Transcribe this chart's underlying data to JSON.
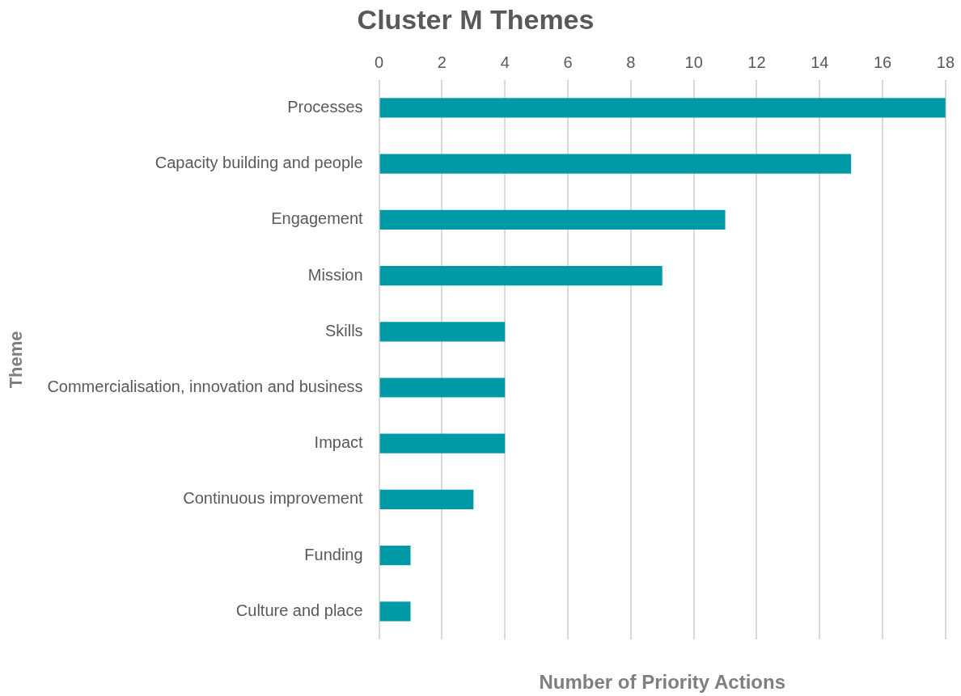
{
  "chart_data": {
    "type": "bar",
    "orientation": "horizontal",
    "title": "Cluster M Themes",
    "xlabel": "Number of Priority Actions",
    "ylabel": "Theme",
    "categories": [
      "Processes",
      "Capacity building and people",
      "Engagement",
      "Mission",
      "Skills",
      "Commercialisation, innovation and business",
      "Impact",
      "Continuous improvement",
      "Funding",
      "Culture and place"
    ],
    "values": [
      18,
      15,
      11,
      9,
      4,
      4,
      4,
      3,
      1,
      1
    ],
    "color": "#009aa6",
    "xlim": [
      0,
      18
    ],
    "xticks": [
      0,
      2,
      4,
      6,
      8,
      10,
      12,
      14,
      16,
      18
    ],
    "grid": "x",
    "legend": false
  }
}
